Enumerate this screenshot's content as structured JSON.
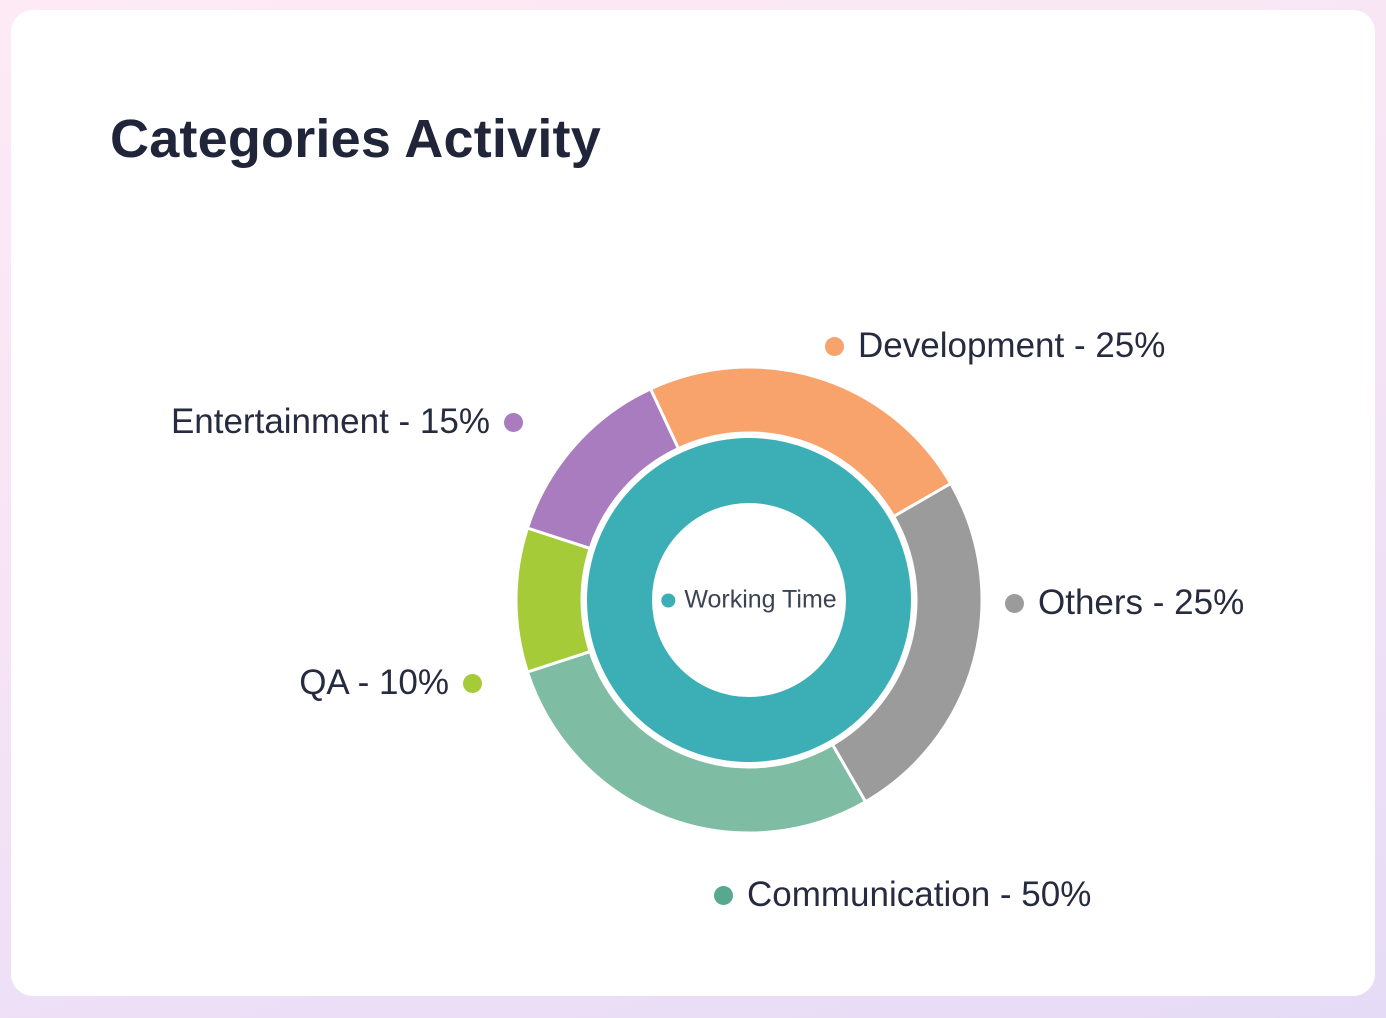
{
  "page": {
    "title": "Categories Activity"
  },
  "chart_data": {
    "type": "pie",
    "subtype": "donut-two-ring",
    "title": "Categories Activity",
    "unit": "%",
    "legend_position": "around",
    "grid": false,
    "inner_ring": {
      "label": "Working Time",
      "value": 100,
      "color": "#3caeb6"
    },
    "segments": [
      {
        "label": "Development",
        "value": 25,
        "legend": "Development - 25%",
        "color": "#f7a36b",
        "dot_color": "#f7a36b",
        "start_deg": -25,
        "end_deg": 60
      },
      {
        "label": "Others",
        "value": 25,
        "legend": "Others - 25%",
        "color": "#9b9b9b",
        "dot_color": "#9b9b9b",
        "start_deg": 60,
        "end_deg": 150
      },
      {
        "label": "Communication",
        "value": 50,
        "legend": "Communication - 50%",
        "color": "#7ebca4",
        "dot_color": "#58a88f",
        "start_deg": 150,
        "end_deg": 252
      },
      {
        "label": "QA",
        "value": 10,
        "legend": "QA - 10%",
        "color": "#a5cb39",
        "dot_color": "#a5cb39",
        "start_deg": 252,
        "end_deg": 288
      },
      {
        "label": "Entertainment",
        "value": 15,
        "legend": "Entertainment - 15%",
        "color": "#a87cbe",
        "dot_color": "#a87cbe",
        "start_deg": 288,
        "end_deg": 335
      }
    ]
  }
}
